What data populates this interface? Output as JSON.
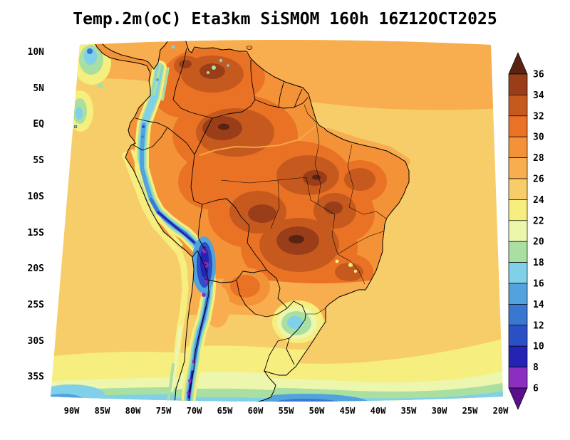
{
  "title": "Temp.2m(oC) Eta3km SiSMOM 160h 16Z12OCT2025",
  "title_parts": {
    "variable": "Temp.2m(oC)",
    "model": "Eta3km",
    "system": "SiSMOM",
    "forecast_hour": "160h",
    "init_time": "16Z12OCT2025"
  },
  "axes": {
    "lat_labels": [
      "10N",
      "5N",
      "EQ",
      "5S",
      "10S",
      "15S",
      "20S",
      "25S",
      "30S",
      "35S"
    ],
    "lon_labels": [
      "90W",
      "85W",
      "80W",
      "75W",
      "70W",
      "65W",
      "60W",
      "55W",
      "50W",
      "45W",
      "40W",
      "35W",
      "30W",
      "25W",
      "20W"
    ]
  },
  "colorbar": {
    "labels": [
      "36",
      "34",
      "32",
      "30",
      "28",
      "26",
      "24",
      "22",
      "20",
      "18",
      "16",
      "14",
      "12",
      "10",
      "8",
      "6"
    ],
    "unit": "oC",
    "position": "right"
  },
  "chart_data": {
    "type": "heatmap",
    "title": "Temp.2m(oC) Eta3km SiSMOM 160h 16Z12OCT2025",
    "variable": "2-meter temperature (oC)",
    "model": "Eta3km",
    "system": "SiSMOM",
    "forecast_hour": "160h",
    "init": "16Z12OCT2025",
    "lat_ticks": [
      "10N",
      "5N",
      "EQ",
      "5S",
      "10S",
      "15S",
      "20S",
      "25S",
      "30S",
      "35S"
    ],
    "lon_ticks": [
      "90W",
      "85W",
      "80W",
      "75W",
      "70W",
      "65W",
      "60W",
      "55W",
      "50W",
      "45W",
      "40W",
      "35W",
      "30W",
      "25W",
      "20W"
    ],
    "colorbar_levels_degC": [
      6,
      8,
      10,
      12,
      14,
      16,
      18,
      20,
      22,
      24,
      26,
      28,
      30,
      32,
      34,
      36
    ],
    "legend_position": "right",
    "palette": {
      "gt36": "#5a2212",
      "c34_36": "#9a3e1a",
      "c32_34": "#c65a1e",
      "c30_32": "#e97225",
      "c28_30": "#f49238",
      "c26_28": "#f8ae4f",
      "c24_26": "#f7cd69",
      "c22_24": "#f6ee7e",
      "c20_22": "#edf6ad",
      "c18_20": "#a9dfa0",
      "c16_18": "#7fd0e8",
      "c14_16": "#52a3dd",
      "c12_14": "#3a77d0",
      "c10_12": "#2b4fc5",
      "c8_10": "#2323b4",
      "c6_8": "#8c2fc0",
      "lt6": "#5a0f8a"
    },
    "approx_grid_degC": {
      "note": "approximate values read from the color shading",
      "lons_degW": [
        90,
        85,
        80,
        75,
        70,
        65,
        60,
        55,
        50,
        45,
        40,
        35,
        30,
        25,
        20
      ],
      "lats_degN": [
        10,
        5,
        0,
        -5,
        -10,
        -15,
        -20,
        -25,
        -30,
        -35
      ],
      "values_degC": [
        [
          null,
          20,
          27,
          28,
          30,
          31,
          29,
          27,
          27,
          27,
          27,
          27,
          27,
          27,
          27
        ],
        [
          25,
          24,
          26,
          28,
          30,
          31,
          31,
          29,
          28,
          27,
          26,
          26,
          26,
          26,
          26
        ],
        [
          23,
          24,
          23,
          28,
          31,
          32,
          31,
          31,
          29,
          27,
          26,
          26,
          26,
          26,
          26
        ],
        [
          24,
          24,
          23,
          29,
          31,
          32,
          33,
          32,
          31,
          30,
          29,
          27,
          26,
          26,
          26
        ],
        [
          24,
          24,
          23,
          12,
          30,
          32,
          33,
          32,
          31,
          30,
          28,
          26,
          25,
          25,
          25
        ],
        [
          24,
          24,
          24,
          22,
          8,
          30,
          33,
          34,
          33,
          31,
          28,
          25,
          25,
          25,
          25
        ],
        [
          24,
          24,
          24,
          23,
          20,
          24,
          32,
          33,
          31,
          29,
          26,
          25,
          25,
          25,
          25
        ],
        [
          23,
          23,
          23,
          23,
          10,
          26,
          30,
          30,
          28,
          26,
          25,
          24,
          24,
          24,
          24
        ],
        [
          22,
          22,
          22,
          21,
          8,
          24,
          25,
          23,
          19,
          23,
          24,
          24,
          24,
          24,
          24
        ],
        [
          20,
          20,
          20,
          17,
          6,
          21,
          21,
          19,
          19,
          20,
          21,
          22,
          22,
          22,
          22
        ]
      ]
    },
    "notable_features": [
      {
        "region": "Amazon basin and central Brazil interior",
        "approx_degC": "30-36+"
      },
      {
        "region": "Andes cordillera narrow band",
        "approx_degC": "6-16"
      },
      {
        "region": "Altiplano (Peru-Bolivia) and south-Chile Andes",
        "approx_degC": "<6-10"
      },
      {
        "region": "Tropical Atlantic / Caribbean ocean",
        "approx_degC": "24-28"
      },
      {
        "region": "Pacific off Ecuador-Peru incl. Galapagos patches",
        "approx_degC": "16-24"
      },
      {
        "region": "Southern Brazil / Uruguay cool pocket",
        "approx_degC": "16-22"
      },
      {
        "region": "Oceans south of ~32S (banded gradient)",
        "approx_degC": "12-24"
      }
    ]
  }
}
